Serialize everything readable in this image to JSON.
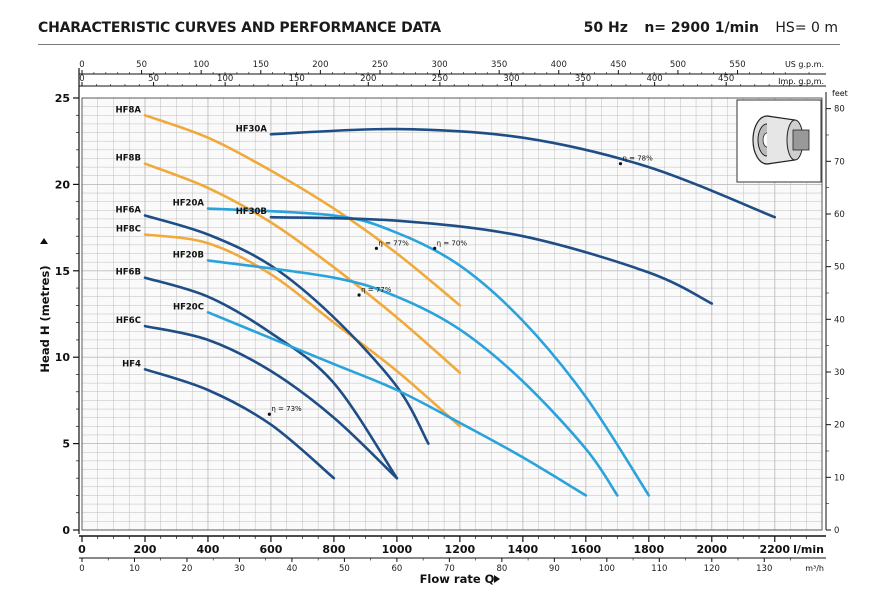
{
  "header": {
    "title": "CHARACTERISTIC CURVES AND PERFORMANCE DATA",
    "freq": "50 Hz",
    "speed": "n= 2900  1/min",
    "hs": "HS= 0 m"
  },
  "colors": {
    "dark": "#1f4e87",
    "orange": "#f2a93b",
    "light": "#2aa3dc",
    "grid": "#bdbdbd"
  },
  "chart_data": {
    "type": "line",
    "xlabel": "Flow rate Q",
    "ylabel": "Head H (metres)",
    "x_unit": "l/min",
    "xlim": [
      0,
      2350
    ],
    "ylim": [
      0,
      25
    ],
    "grid": true,
    "axes": {
      "bottom_lmin": {
        "ticks": [
          0,
          200,
          400,
          600,
          800,
          1000,
          1200,
          1400,
          1600,
          1800,
          2000,
          2200
        ],
        "unit": "l/min"
      },
      "bottom_m3h": {
        "ticks": [
          0,
          10,
          20,
          30,
          40,
          50,
          60,
          70,
          80,
          90,
          100,
          110,
          120,
          130
        ],
        "unit": "m³/h"
      },
      "top_usgpm": {
        "ticks": [
          0,
          50,
          100,
          150,
          200,
          250,
          300,
          350,
          400,
          450,
          500,
          550
        ],
        "unit": "US g.p.m."
      },
      "top_impgpm": {
        "ticks": [
          0,
          50,
          100,
          150,
          200,
          250,
          300,
          350,
          400,
          450
        ],
        "unit": "Imp. g.p.m."
      },
      "left_m": {
        "ticks": [
          0,
          5,
          10,
          15,
          20,
          25
        ]
      },
      "right_feet": {
        "ticks": [
          0,
          10,
          20,
          30,
          40,
          50,
          60,
          70,
          80
        ],
        "unit": "feet"
      }
    },
    "series": [
      {
        "name": "HF8A",
        "color": "orange",
        "x": [
          200,
          400,
          600,
          800,
          1000,
          1200
        ],
        "y": [
          24,
          22.7,
          20.8,
          18.6,
          16,
          13
        ]
      },
      {
        "name": "HF8B",
        "color": "orange",
        "x": [
          200,
          400,
          600,
          800,
          1000,
          1200
        ],
        "y": [
          21.2,
          19.8,
          17.8,
          15.2,
          12.3,
          9.1
        ]
      },
      {
        "name": "HF8C",
        "color": "orange",
        "x": [
          200,
          400,
          600,
          800,
          1000,
          1200
        ],
        "y": [
          17.1,
          16.6,
          14.8,
          12,
          9.2,
          6
        ]
      },
      {
        "name": "HF6A",
        "color": "dark",
        "x": [
          200,
          400,
          600,
          800,
          1000,
          1100
        ],
        "y": [
          18.2,
          17.1,
          15.3,
          12.3,
          8.3,
          5
        ]
      },
      {
        "name": "HF6B",
        "color": "dark",
        "x": [
          200,
          400,
          600,
          800,
          1000
        ],
        "y": [
          14.6,
          13.5,
          11.4,
          8.5,
          3
        ]
      },
      {
        "name": "HF6C",
        "color": "dark",
        "x": [
          200,
          400,
          600,
          800,
          1000
        ],
        "y": [
          11.8,
          11,
          9.2,
          6.5,
          3
        ]
      },
      {
        "name": "HF4",
        "color": "dark",
        "x": [
          200,
          400,
          600,
          800
        ],
        "y": [
          9.3,
          8.1,
          6.1,
          3
        ]
      },
      {
        "name": "HF20A",
        "color": "light",
        "x": [
          400,
          800,
          1000,
          1200,
          1400,
          1600,
          1800
        ],
        "y": [
          18.6,
          18.2,
          17.2,
          15.3,
          12.1,
          7.7,
          2
        ]
      },
      {
        "name": "HF20B",
        "color": "light",
        "x": [
          400,
          800,
          1000,
          1200,
          1400,
          1600,
          1700
        ],
        "y": [
          15.6,
          14.6,
          13.5,
          11.6,
          8.6,
          4.7,
          2
        ]
      },
      {
        "name": "HF20C",
        "color": "light",
        "x": [
          400,
          600,
          800,
          1000,
          1200,
          1400,
          1600
        ],
        "y": [
          12.6,
          11.1,
          9.6,
          8.1,
          6.2,
          4.2,
          2
        ]
      },
      {
        "name": "HF30A",
        "color": "dark",
        "x": [
          600,
          1000,
          1400,
          1800,
          2200
        ],
        "y": [
          22.9,
          23.2,
          22.7,
          21,
          18.1
        ]
      },
      {
        "name": "HF30B",
        "color": "dark",
        "x": [
          600,
          1000,
          1400,
          1800,
          2000
        ],
        "y": [
          18.1,
          17.9,
          17,
          14.9,
          13.1
        ]
      }
    ],
    "annotations": [
      {
        "text": "η = 78%",
        "x": 1710,
        "y": 21.2
      },
      {
        "text": "η = 70%",
        "x": 1120,
        "y": 16.3
      },
      {
        "text": "η = 77%",
        "x": 935,
        "y": 16.3
      },
      {
        "text": "η = 77%",
        "x": 880,
        "y": 13.6
      },
      {
        "text": "η = 73%",
        "x": 595,
        "y": 6.7
      }
    ]
  }
}
